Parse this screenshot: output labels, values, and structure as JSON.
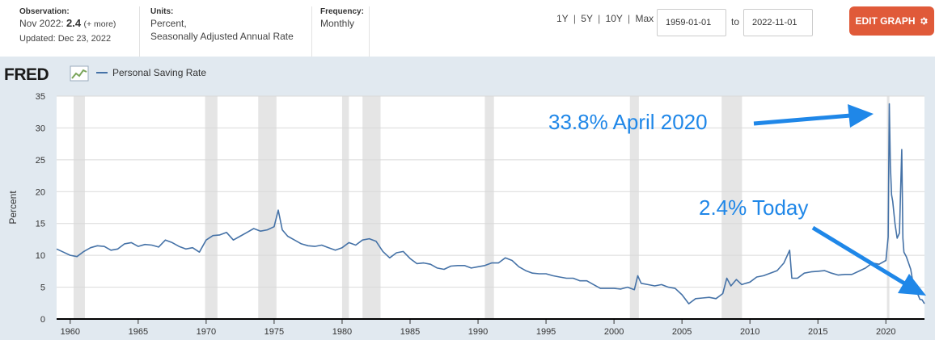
{
  "header": {
    "observation_label": "Observation:",
    "observation_date": "Nov 2022:",
    "observation_value": "2.4",
    "observation_more": "(+ more)",
    "updated": "Updated: Dec 23, 2022",
    "units_label": "Units:",
    "units_line1": "Percent,",
    "units_line2": "Seasonally Adjusted Annual Rate",
    "frequency_label": "Frequency:",
    "frequency_value": "Monthly"
  },
  "controls": {
    "range_1y": "1Y",
    "range_5y": "5Y",
    "range_10y": "10Y",
    "range_max": "Max",
    "separator": "|",
    "start_date": "1959-01-01",
    "to_label": "to",
    "end_date": "2022-11-01",
    "edit_button": "EDIT GRAPH"
  },
  "logo_text": "FRED",
  "colors": {
    "series": "#4572a7",
    "recession": "#e5e5e5",
    "panel_bg": "#e1e9f0",
    "annotation": "#1f87e8",
    "edit_button": "#e05a39"
  },
  "chart_data": {
    "type": "line",
    "title": "",
    "ylabel": "Percent",
    "xlabel": "",
    "xlim": [
      1959.0,
      1959.0,
      2022.84
    ],
    "ylim": [
      0,
      35
    ],
    "y_ticks": [
      0,
      5,
      10,
      15,
      20,
      25,
      30,
      35
    ],
    "x_ticks": [
      1960,
      1965,
      1970,
      1975,
      1980,
      1985,
      1990,
      1995,
      2000,
      2005,
      2010,
      2015,
      2020
    ],
    "legend": [
      "Personal Saving Rate"
    ],
    "legend_position": "top-left",
    "grid": "horizontal",
    "recessions": [
      [
        1960.25,
        1961.08
      ],
      [
        1969.92,
        1970.83
      ],
      [
        1973.83,
        1975.17
      ],
      [
        1980.0,
        1980.5
      ],
      [
        1981.5,
        1982.83
      ],
      [
        1990.5,
        1991.17
      ],
      [
        2001.17,
        2001.83
      ],
      [
        2007.92,
        2009.42
      ],
      [
        2020.08,
        2020.25
      ]
    ],
    "series": [
      {
        "name": "Personal Saving Rate",
        "x": [
          1959.0,
          1959.5,
          1960.0,
          1960.5,
          1961.0,
          1961.5,
          1962.0,
          1962.5,
          1963.0,
          1963.5,
          1964.0,
          1964.5,
          1965.0,
          1965.5,
          1966.0,
          1966.5,
          1967.0,
          1967.5,
          1968.0,
          1968.5,
          1969.0,
          1969.5,
          1970.0,
          1970.5,
          1971.0,
          1971.5,
          1972.0,
          1972.5,
          1973.0,
          1973.5,
          1974.0,
          1974.5,
          1975.0,
          1975.3,
          1975.6,
          1976.0,
          1976.5,
          1977.0,
          1977.5,
          1978.0,
          1978.5,
          1979.0,
          1979.5,
          1980.0,
          1980.5,
          1981.0,
          1981.5,
          1982.0,
          1982.5,
          1983.0,
          1983.5,
          1984.0,
          1984.5,
          1985.0,
          1985.5,
          1986.0,
          1986.5,
          1987.0,
          1987.5,
          1988.0,
          1988.5,
          1989.0,
          1989.5,
          1990.0,
          1990.5,
          1991.0,
          1991.5,
          1992.0,
          1992.5,
          1993.0,
          1993.5,
          1994.0,
          1994.5,
          1995.0,
          1995.5,
          1996.0,
          1996.5,
          1997.0,
          1997.5,
          1998.0,
          1998.5,
          1999.0,
          1999.5,
          2000.0,
          2000.5,
          2001.0,
          2001.5,
          2001.75,
          2002.0,
          2002.5,
          2003.0,
          2003.5,
          2004.0,
          2004.5,
          2005.0,
          2005.5,
          2006.0,
          2006.5,
          2007.0,
          2007.5,
          2008.0,
          2008.3,
          2008.6,
          2009.0,
          2009.4,
          2009.7,
          2010.0,
          2010.5,
          2011.0,
          2011.5,
          2012.0,
          2012.5,
          2012.92,
          2013.08,
          2013.5,
          2014.0,
          2014.5,
          2015.0,
          2015.5,
          2016.0,
          2016.5,
          2017.0,
          2017.5,
          2018.0,
          2018.5,
          2019.0,
          2019.5,
          2020.0,
          2020.17,
          2020.25,
          2020.33,
          2020.42,
          2020.5,
          2020.67,
          2020.83,
          2021.0,
          2021.08,
          2021.17,
          2021.25,
          2021.33,
          2021.5,
          2021.67,
          2021.83,
          2022.0,
          2022.25,
          2022.5,
          2022.67,
          2022.84
        ],
        "values": [
          11.0,
          10.5,
          10.0,
          9.8,
          10.6,
          11.2,
          11.5,
          11.4,
          10.8,
          11.0,
          11.8,
          12.0,
          11.4,
          11.7,
          11.6,
          11.3,
          12.4,
          12.0,
          11.4,
          11.0,
          11.2,
          10.5,
          12.4,
          13.1,
          13.2,
          13.6,
          12.4,
          13.0,
          13.6,
          14.2,
          13.8,
          14.0,
          14.5,
          17.1,
          14.0,
          13.0,
          12.4,
          11.8,
          11.5,
          11.4,
          11.6,
          11.2,
          10.8,
          11.2,
          12.0,
          11.6,
          12.4,
          12.6,
          12.2,
          10.6,
          9.6,
          10.4,
          10.6,
          9.5,
          8.7,
          8.8,
          8.6,
          8.0,
          7.8,
          8.3,
          8.4,
          8.4,
          8.0,
          8.2,
          8.4,
          8.8,
          8.8,
          9.6,
          9.2,
          8.2,
          7.6,
          7.2,
          7.1,
          7.1,
          6.8,
          6.6,
          6.4,
          6.4,
          6.0,
          6.0,
          5.4,
          4.8,
          4.8,
          4.8,
          4.7,
          5.0,
          4.6,
          6.8,
          5.6,
          5.4,
          5.2,
          5.4,
          5.0,
          4.8,
          3.8,
          2.4,
          3.2,
          3.3,
          3.4,
          3.2,
          4.0,
          6.4,
          5.2,
          6.2,
          5.4,
          5.6,
          5.8,
          6.6,
          6.8,
          7.2,
          7.6,
          8.8,
          10.8,
          6.4,
          6.4,
          7.2,
          7.4,
          7.5,
          7.6,
          7.2,
          6.9,
          7.0,
          7.0,
          7.5,
          8.0,
          8.8,
          8.6,
          9.2,
          12.9,
          33.8,
          24.2,
          19.5,
          18.5,
          15.0,
          12.7,
          13.5,
          19.9,
          26.6,
          12.7,
          10.5,
          9.8,
          8.8,
          7.8,
          5.6,
          4.4,
          3.1,
          3.0,
          2.4
        ]
      }
    ],
    "annotations": [
      "33.8% April 2020",
      "2.4% Today"
    ]
  }
}
